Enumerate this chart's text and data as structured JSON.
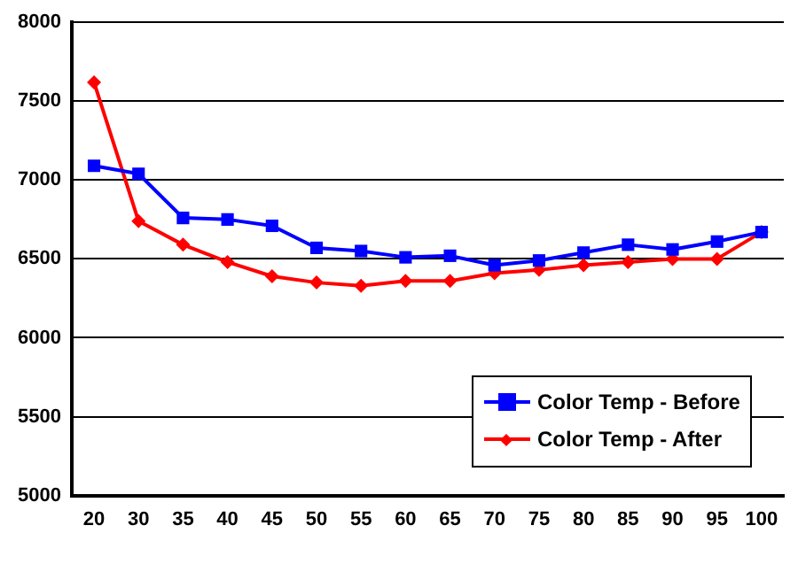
{
  "chart_data": {
    "type": "line",
    "categories": [
      "20",
      "30",
      "35",
      "40",
      "45",
      "50",
      "55",
      "60",
      "65",
      "70",
      "75",
      "80",
      "85",
      "90",
      "95",
      "100"
    ],
    "series": [
      {
        "name": "Color Temp - Before",
        "color": "#0000ff",
        "marker": "square",
        "values": [
          7090,
          7040,
          6760,
          6750,
          6710,
          6570,
          6550,
          6510,
          6520,
          6460,
          6490,
          6540,
          6590,
          6560,
          6610,
          6670
        ]
      },
      {
        "name": "Color Temp - After",
        "color": "#ff0000",
        "marker": "diamond",
        "values": [
          7620,
          6740,
          6590,
          6480,
          6390,
          6350,
          6330,
          6360,
          6360,
          6410,
          6430,
          6460,
          6480,
          6500,
          6500,
          6670
        ]
      }
    ],
    "ylim": [
      5000,
      8000
    ],
    "yticks": [
      5000,
      5500,
      6000,
      6500,
      7000,
      7500,
      8000
    ],
    "grid": "y",
    "legend": "bottom right"
  }
}
